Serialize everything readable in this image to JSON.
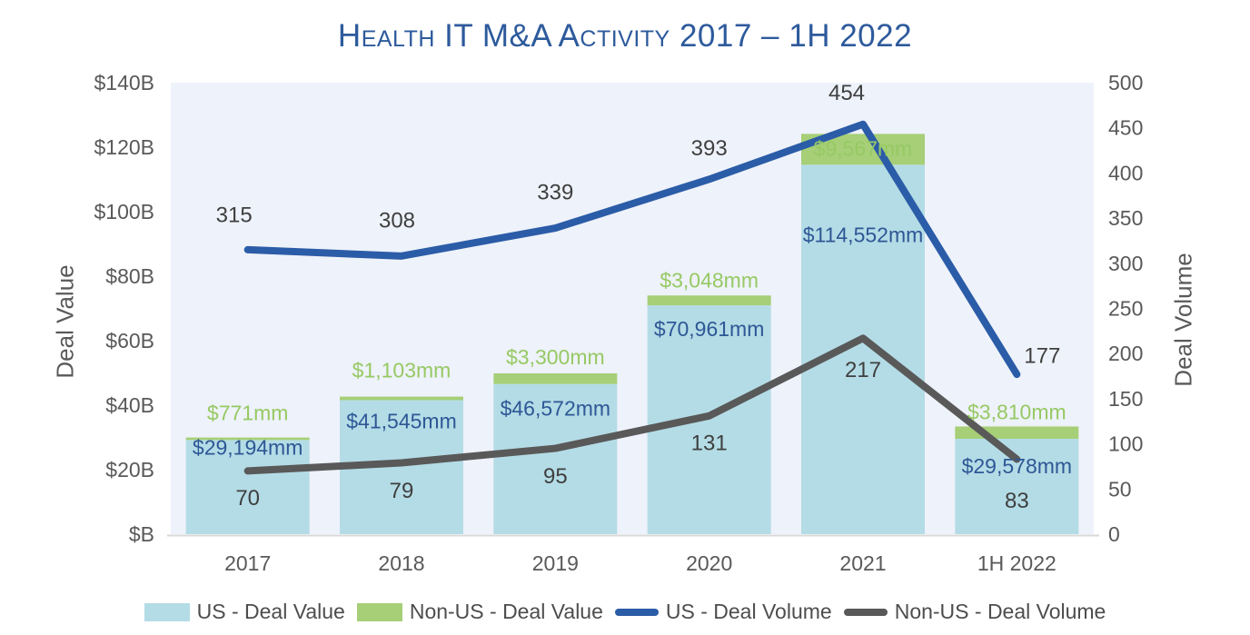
{
  "chart_data": {
    "type": "combo-stacked-bar-line",
    "title": "Health IT M&A Activity 2017 – 1H 2022",
    "categories": [
      "2017",
      "2018",
      "2019",
      "2020",
      "2021",
      "1H 2022"
    ],
    "left_axis": {
      "label": "Deal Value",
      "min": 0,
      "max": 140,
      "tick_step": 20,
      "unit": "$B",
      "tick_labels": [
        "$B",
        "$20B",
        "$40B",
        "$60B",
        "$80B",
        "$100B",
        "$120B",
        "$140B"
      ],
      "grid": false
    },
    "right_axis": {
      "label": "Deal Volume",
      "min": 0,
      "max": 500,
      "tick_step": 50,
      "tick_labels": [
        "0",
        "50",
        "100",
        "150",
        "200",
        "250",
        "300",
        "350",
        "400",
        "450",
        "500"
      ]
    },
    "series": [
      {
        "name": "US - Deal Value",
        "type": "bar",
        "stack": "deal-value",
        "axis": "left",
        "unit": "$mm",
        "values": [
          29194,
          41545,
          46572,
          70961,
          114552,
          29578
        ],
        "labels": [
          "$29,194mm",
          "$41,545mm",
          "$46,572mm",
          "$70,961mm",
          "$114,552mm",
          "$29,578mm"
        ],
        "color": "#B4DCE6",
        "label_color": "#2E5796"
      },
      {
        "name": "Non-US - Deal Value",
        "type": "bar",
        "stack": "deal-value",
        "axis": "left",
        "unit": "$mm",
        "values": [
          771,
          1103,
          3300,
          3048,
          9567,
          3810
        ],
        "labels": [
          "$771mm",
          "$1,103mm",
          "$3,300mm",
          "$3,048mm",
          "$9,567mm",
          "$3,810mm"
        ],
        "color": "#A6CF77",
        "label_color": "#97C964"
      },
      {
        "name": "US - Deal Volume",
        "type": "line",
        "axis": "right",
        "values": [
          315,
          308,
          339,
          393,
          454,
          177
        ],
        "labels": [
          "315",
          "308",
          "339",
          "393",
          "454",
          "177"
        ],
        "color": "#2B5CA7",
        "label_color": "#3F3F3F"
      },
      {
        "name": "Non-US - Deal Volume",
        "type": "line",
        "axis": "right",
        "values": [
          70,
          79,
          95,
          131,
          217,
          83
        ],
        "labels": [
          "70",
          "79",
          "95",
          "131",
          "217",
          "83"
        ],
        "color": "#595959",
        "label_color": "#3F3F3F"
      }
    ],
    "legend": {
      "position": "bottom"
    },
    "colors": {
      "title": "#2D5A9C",
      "plot_background": "#EEF2FA",
      "axis_text": "#595959",
      "axis_line": "#D9D9D9"
    },
    "label_layout": {
      "nonus_value_dy": [
        -27,
        -29,
        -18,
        -17,
        16,
        -16
      ],
      "us_value_dy": [
        8,
        23,
        27,
        26,
        77,
        30
      ],
      "us_volume_dx": [
        -15,
        -5,
        0,
        0,
        -18,
        28
      ],
      "us_volume_dy": [
        -38,
        -39,
        -39,
        -34,
        -34,
        -20
      ],
      "nonus_volume_dx": [
        0,
        0,
        0,
        0,
        0,
        0
      ],
      "nonus_volume_dy": [
        30,
        31,
        31,
        30,
        35,
        46
      ]
    }
  }
}
